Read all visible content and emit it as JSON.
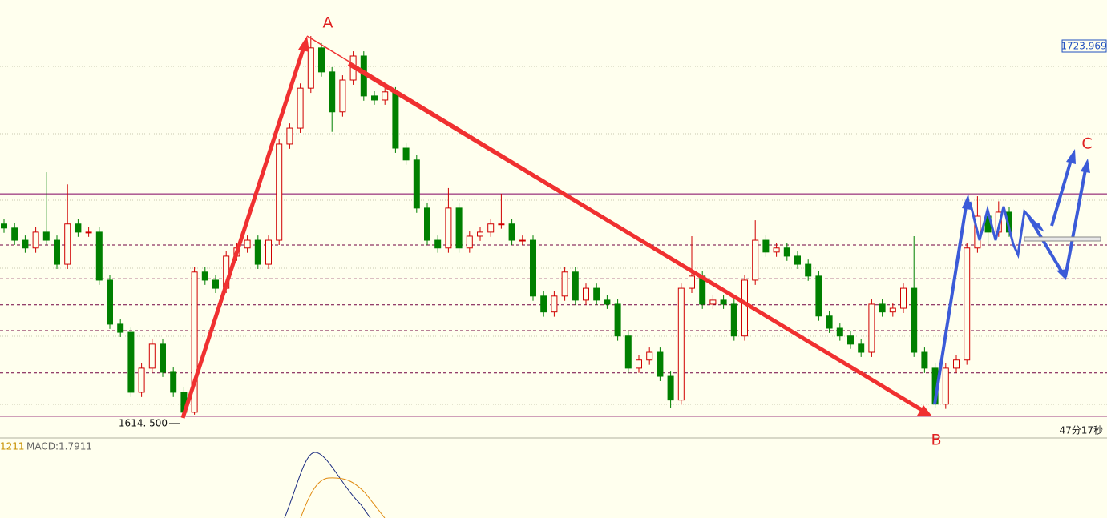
{
  "chart_data": {
    "type": "candlestick",
    "ylim": [
      1608.1,
      1737.45
    ],
    "up_color": "#d00000",
    "down_color": "#008000",
    "open": [
      1671.3,
      1670.1,
      1666.5,
      1664.2,
      1668.9,
      1666.5,
      1659.4,
      1671.3,
      1668.9,
      1668.9,
      1654.7,
      1641.7,
      1639.3,
      1621.6,
      1628.7,
      1635.8,
      1627.5,
      1621.6,
      1615.7,
      1657.1,
      1654.7,
      1652.3,
      1661.8,
      1664.2,
      1666.5,
      1659.4,
      1666.5,
      1694.9,
      1699.6,
      1711.4,
      1723.3,
      1716.2,
      1704.4,
      1713.8,
      1720.9,
      1709.1,
      1707.9,
      1710.3,
      1693.7,
      1690.2,
      1676.0,
      1666.5,
      1664.2,
      1676.0,
      1664.2,
      1667.7,
      1668.9,
      1671.3,
      1671.3,
      1666.5,
      1666.5,
      1650.0,
      1645.3,
      1650.0,
      1657.1,
      1648.8,
      1652.3,
      1648.8,
      1647.6,
      1638.2,
      1628.7,
      1631.1,
      1633.4,
      1626.3,
      1619.3,
      1652.3,
      1655.9,
      1647.6,
      1648.8,
      1647.6,
      1638.2,
      1654.7,
      1666.5,
      1663.0,
      1664.2,
      1661.8,
      1659.4,
      1655.9,
      1644.1,
      1640.5,
      1638.2,
      1635.8,
      1633.4,
      1647.6,
      1645.3,
      1646.4,
      1652.3,
      1633.4,
      1628.7,
      1618.1,
      1628.7,
      1631.1,
      1664.2,
      1673.6,
      1668.9,
      1674.8
    ],
    "high": [
      1672.7,
      1671.5,
      1667.9,
      1670.3,
      1686.6,
      1667.9,
      1683.0,
      1672.7,
      1670.3,
      1670.3,
      1656.1,
      1643.1,
      1640.7,
      1630.1,
      1637.2,
      1637.2,
      1628.9,
      1623.0,
      1658.5,
      1658.5,
      1656.1,
      1663.2,
      1665.6,
      1667.9,
      1667.9,
      1667.9,
      1696.3,
      1701.0,
      1712.8,
      1726.8,
      1724.7,
      1717.6,
      1715.2,
      1722.3,
      1722.3,
      1710.5,
      1711.7,
      1711.7,
      1695.1,
      1691.6,
      1677.4,
      1667.9,
      1681.9,
      1677.4,
      1669.1,
      1670.3,
      1672.7,
      1680.2,
      1672.7,
      1667.9,
      1667.9,
      1651.4,
      1651.4,
      1658.5,
      1658.5,
      1653.7,
      1653.7,
      1650.2,
      1649.0,
      1639.6,
      1632.5,
      1634.8,
      1634.8,
      1627.7,
      1653.7,
      1667.7,
      1657.3,
      1650.2,
      1650.2,
      1649.0,
      1656.1,
      1672.4,
      1667.9,
      1665.6,
      1665.6,
      1663.2,
      1660.8,
      1657.3,
      1645.5,
      1641.9,
      1639.6,
      1637.2,
      1649.0,
      1649.0,
      1647.8,
      1653.7,
      1667.7,
      1634.8,
      1630.1,
      1630.1,
      1632.5,
      1665.6,
      1679.5,
      1675.0,
      1678.0,
      1676.2
    ],
    "low": [
      1668.7,
      1665.1,
      1662.8,
      1662.8,
      1665.1,
      1658.0,
      1658.0,
      1667.5,
      1667.5,
      1653.3,
      1640.3,
      1637.9,
      1620.2,
      1620.2,
      1627.3,
      1626.1,
      1620.2,
      1614.5,
      1615.0,
      1653.3,
      1650.9,
      1650.9,
      1660.4,
      1662.8,
      1658.0,
      1658.0,
      1665.1,
      1693.5,
      1698.2,
      1710.0,
      1714.8,
      1698.5,
      1703.0,
      1712.4,
      1707.7,
      1706.5,
      1706.5,
      1692.3,
      1688.8,
      1674.6,
      1665.1,
      1662.8,
      1662.8,
      1662.8,
      1662.8,
      1666.3,
      1667.5,
      1669.9,
      1665.1,
      1665.1,
      1648.6,
      1643.9,
      1643.9,
      1648.6,
      1647.4,
      1647.4,
      1647.4,
      1646.2,
      1636.8,
      1627.3,
      1627.3,
      1629.7,
      1624.9,
      1617.0,
      1617.9,
      1650.9,
      1646.2,
      1646.2,
      1646.2,
      1636.8,
      1636.8,
      1653.3,
      1661.6,
      1661.6,
      1660.4,
      1658.0,
      1654.5,
      1642.7,
      1639.1,
      1636.8,
      1634.4,
      1632.0,
      1632.0,
      1643.9,
      1643.9,
      1645.0,
      1632.0,
      1627.3,
      1616.9,
      1616.7,
      1627.3,
      1629.7,
      1662.8,
      1665.0,
      1667.5,
      1667.5
    ],
    "close": [
      1670.1,
      1666.5,
      1664.2,
      1668.9,
      1666.5,
      1659.4,
      1671.3,
      1668.9,
      1668.9,
      1654.7,
      1641.7,
      1639.3,
      1621.6,
      1628.7,
      1635.8,
      1627.5,
      1621.6,
      1615.7,
      1657.1,
      1654.7,
      1652.3,
      1661.8,
      1664.2,
      1666.5,
      1659.4,
      1666.5,
      1694.9,
      1699.6,
      1711.4,
      1723.3,
      1716.2,
      1704.4,
      1713.8,
      1720.9,
      1709.1,
      1707.9,
      1710.3,
      1693.7,
      1690.2,
      1676.0,
      1666.5,
      1664.2,
      1676.0,
      1664.2,
      1667.7,
      1668.9,
      1671.3,
      1671.3,
      1666.5,
      1666.5,
      1650.0,
      1645.3,
      1650.0,
      1657.1,
      1648.8,
      1652.3,
      1648.8,
      1647.6,
      1638.2,
      1628.7,
      1631.1,
      1633.4,
      1626.3,
      1619.3,
      1652.3,
      1655.9,
      1647.6,
      1648.8,
      1647.6,
      1638.2,
      1654.7,
      1666.5,
      1663.0,
      1664.2,
      1661.8,
      1659.4,
      1655.9,
      1644.1,
      1640.5,
      1638.2,
      1635.8,
      1633.4,
      1647.6,
      1645.3,
      1646.4,
      1652.3,
      1633.4,
      1628.7,
      1618.1,
      1628.7,
      1631.1,
      1664.2,
      1673.6,
      1668.9,
      1674.8,
      1668.9
    ],
    "levels_solid": [
      1680.2,
      1614.5
    ],
    "levels_dashed": [
      1665.1,
      1655.1,
      1647.4,
      1639.8,
      1627.3
    ],
    "current_price": 1723.969,
    "low_annotation": {
      "value": 1614.5,
      "label": "1614. 500"
    },
    "points": [
      "A",
      "B",
      "C"
    ],
    "timer": "47分17秒",
    "indicator": {
      "period": "1211",
      "label": "MACD:1.7911"
    }
  }
}
